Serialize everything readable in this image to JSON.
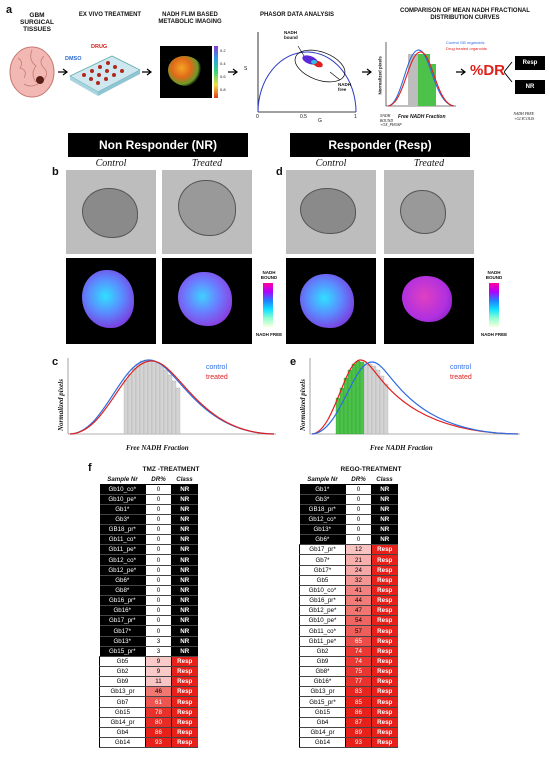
{
  "panel_a": {
    "letter": "a",
    "steps": [
      "GBM SURGICAL TISSUES",
      "EX VIVO TREATMENT",
      "NADH FLIM BASED METABOLIC IMAGING",
      "PHASOR DATA ANALYSIS",
      "COMPARISON OF MEAN NADH FRACTIONAL DISTRIBUTION CURVES"
    ],
    "dmso": "DMSO",
    "drug": "DRUG",
    "phasor_labels": {
      "bound": "NADH bound",
      "free": "NADH free",
      "s": "S",
      "g": "G",
      "ticks": [
        "0",
        "0.5",
        "1"
      ]
    },
    "flim_cbar_ticks": [
      "0.2",
      "0.4",
      "0.6",
      "0.8"
    ],
    "curve_legend": [
      "Control GB organoids",
      "Drug treated organoids"
    ],
    "curve_xlabel": "Free NADH Fraction",
    "curve_ylabel": "Normalized pixels",
    "bound_label": "NADH BOUND +OX_PHOSP",
    "free_label": "NADH FREE +GLYCOLIS",
    "dr_label": "%DR",
    "resp_box": "Resp",
    "nr_box": "NR"
  },
  "panel_b": {
    "letter": "b",
    "title": "Non Responder (NR)",
    "control": "Control",
    "treated": "Treated",
    "bound": "NADH BOUND",
    "free": "NADH FREE"
  },
  "panel_d": {
    "letter": "d",
    "title": "Responder (Resp)",
    "control": "Control",
    "treated": "Treated",
    "bound": "NADH BOUND",
    "free": "NADH FREE"
  },
  "panel_c": {
    "letter": "c",
    "ylabel": "Normalized pixels",
    "xlabel": "Free NADH Fraction",
    "legend": [
      "control",
      "treated"
    ]
  },
  "panel_e": {
    "letter": "e",
    "ylabel": "Normalized pixels",
    "xlabel": "Free NADH Fraction",
    "legend": [
      "control",
      "treated"
    ]
  },
  "panel_f": {
    "letter": "f",
    "tmz": {
      "title": "TMZ -TREATMENT",
      "headers": [
        "Sample Nr",
        "DR%",
        "Class"
      ],
      "rows": [
        [
          "Gb10_co*",
          "0",
          "NR"
        ],
        [
          "Gb10_pe*",
          "0",
          "NR"
        ],
        [
          "Gb1*",
          "0",
          "NR"
        ],
        [
          "Gb3*",
          "0",
          "NR"
        ],
        [
          "GB18_pr*",
          "0",
          "NR"
        ],
        [
          "Gb11_co*",
          "0",
          "NR"
        ],
        [
          "Gb11_pe*",
          "0",
          "NR"
        ],
        [
          "Gb12_co*",
          "0",
          "NR"
        ],
        [
          "Gb12_pe*",
          "0",
          "NR"
        ],
        [
          "Gb6*",
          "0",
          "NR"
        ],
        [
          "Gb8*",
          "0",
          "NR"
        ],
        [
          "Gb16_pr*",
          "0",
          "NR"
        ],
        [
          "Gb16*",
          "0",
          "NR"
        ],
        [
          "Gb17_pr*",
          "0",
          "NR"
        ],
        [
          "Gb17*",
          "0",
          "NR"
        ],
        [
          "Gb13*",
          "3",
          "NR"
        ],
        [
          "Gb15_pr*",
          "3",
          "NR"
        ],
        [
          "Gb5",
          "9",
          "Resp"
        ],
        [
          "Gb2",
          "9",
          "Resp"
        ],
        [
          "Gb9",
          "11",
          "Resp"
        ],
        [
          "Gb13_pr",
          "46",
          "Resp"
        ],
        [
          "Gb7",
          "61",
          "Resp"
        ],
        [
          "Gb15",
          "78",
          "Resp"
        ],
        [
          "Gb14_pr",
          "80",
          "Resp"
        ],
        [
          "Gb4",
          "86",
          "Resp"
        ],
        [
          "Gb14",
          "93",
          "Resp"
        ]
      ]
    },
    "rego": {
      "title": "REGO-TREATMENT",
      "headers": [
        "Sample Nr",
        "DR%",
        "Class"
      ],
      "rows": [
        [
          "Gb1*",
          "0",
          "NR"
        ],
        [
          "Gb3*",
          "0",
          "NR"
        ],
        [
          "GB18_pr*",
          "0",
          "NR"
        ],
        [
          "Gb12_co*",
          "0",
          "NR"
        ],
        [
          "Gb13*",
          "0",
          "NR"
        ],
        [
          "Gb6*",
          "0",
          "NR"
        ],
        [
          "Gb17_pr*",
          "12",
          "Resp"
        ],
        [
          "Gb7*",
          "21",
          "Resp"
        ],
        [
          "Gb17*",
          "24",
          "Resp"
        ],
        [
          "Gb5",
          "32",
          "Resp"
        ],
        [
          "Gb10_co*",
          "41",
          "Resp"
        ],
        [
          "Gb16_pr*",
          "44",
          "Resp"
        ],
        [
          "Gb12_pe*",
          "47",
          "Resp"
        ],
        [
          "Gb10_pe*",
          "54",
          "Resp"
        ],
        [
          "Gb11_co*",
          "57",
          "Resp"
        ],
        [
          "Gb11_pe*",
          "65",
          "Resp"
        ],
        [
          "Gb2",
          "74",
          "Resp"
        ],
        [
          "Gb9",
          "74",
          "Resp"
        ],
        [
          "Gb8*",
          "75",
          "Resp"
        ],
        [
          "Gb16*",
          "77",
          "Resp"
        ],
        [
          "Gb13_pr",
          "83",
          "Resp"
        ],
        [
          "Gb15_pr*",
          "85",
          "Resp"
        ],
        [
          "Gb15",
          "86",
          "Resp"
        ],
        [
          "Gb4",
          "87",
          "Resp"
        ],
        [
          "Gb14_pr",
          "89",
          "Resp"
        ],
        [
          "Gb14",
          "93",
          "Resp"
        ]
      ]
    },
    "colors": {
      "nr_bg": "#000000",
      "resp_base": "#e8201a"
    }
  }
}
